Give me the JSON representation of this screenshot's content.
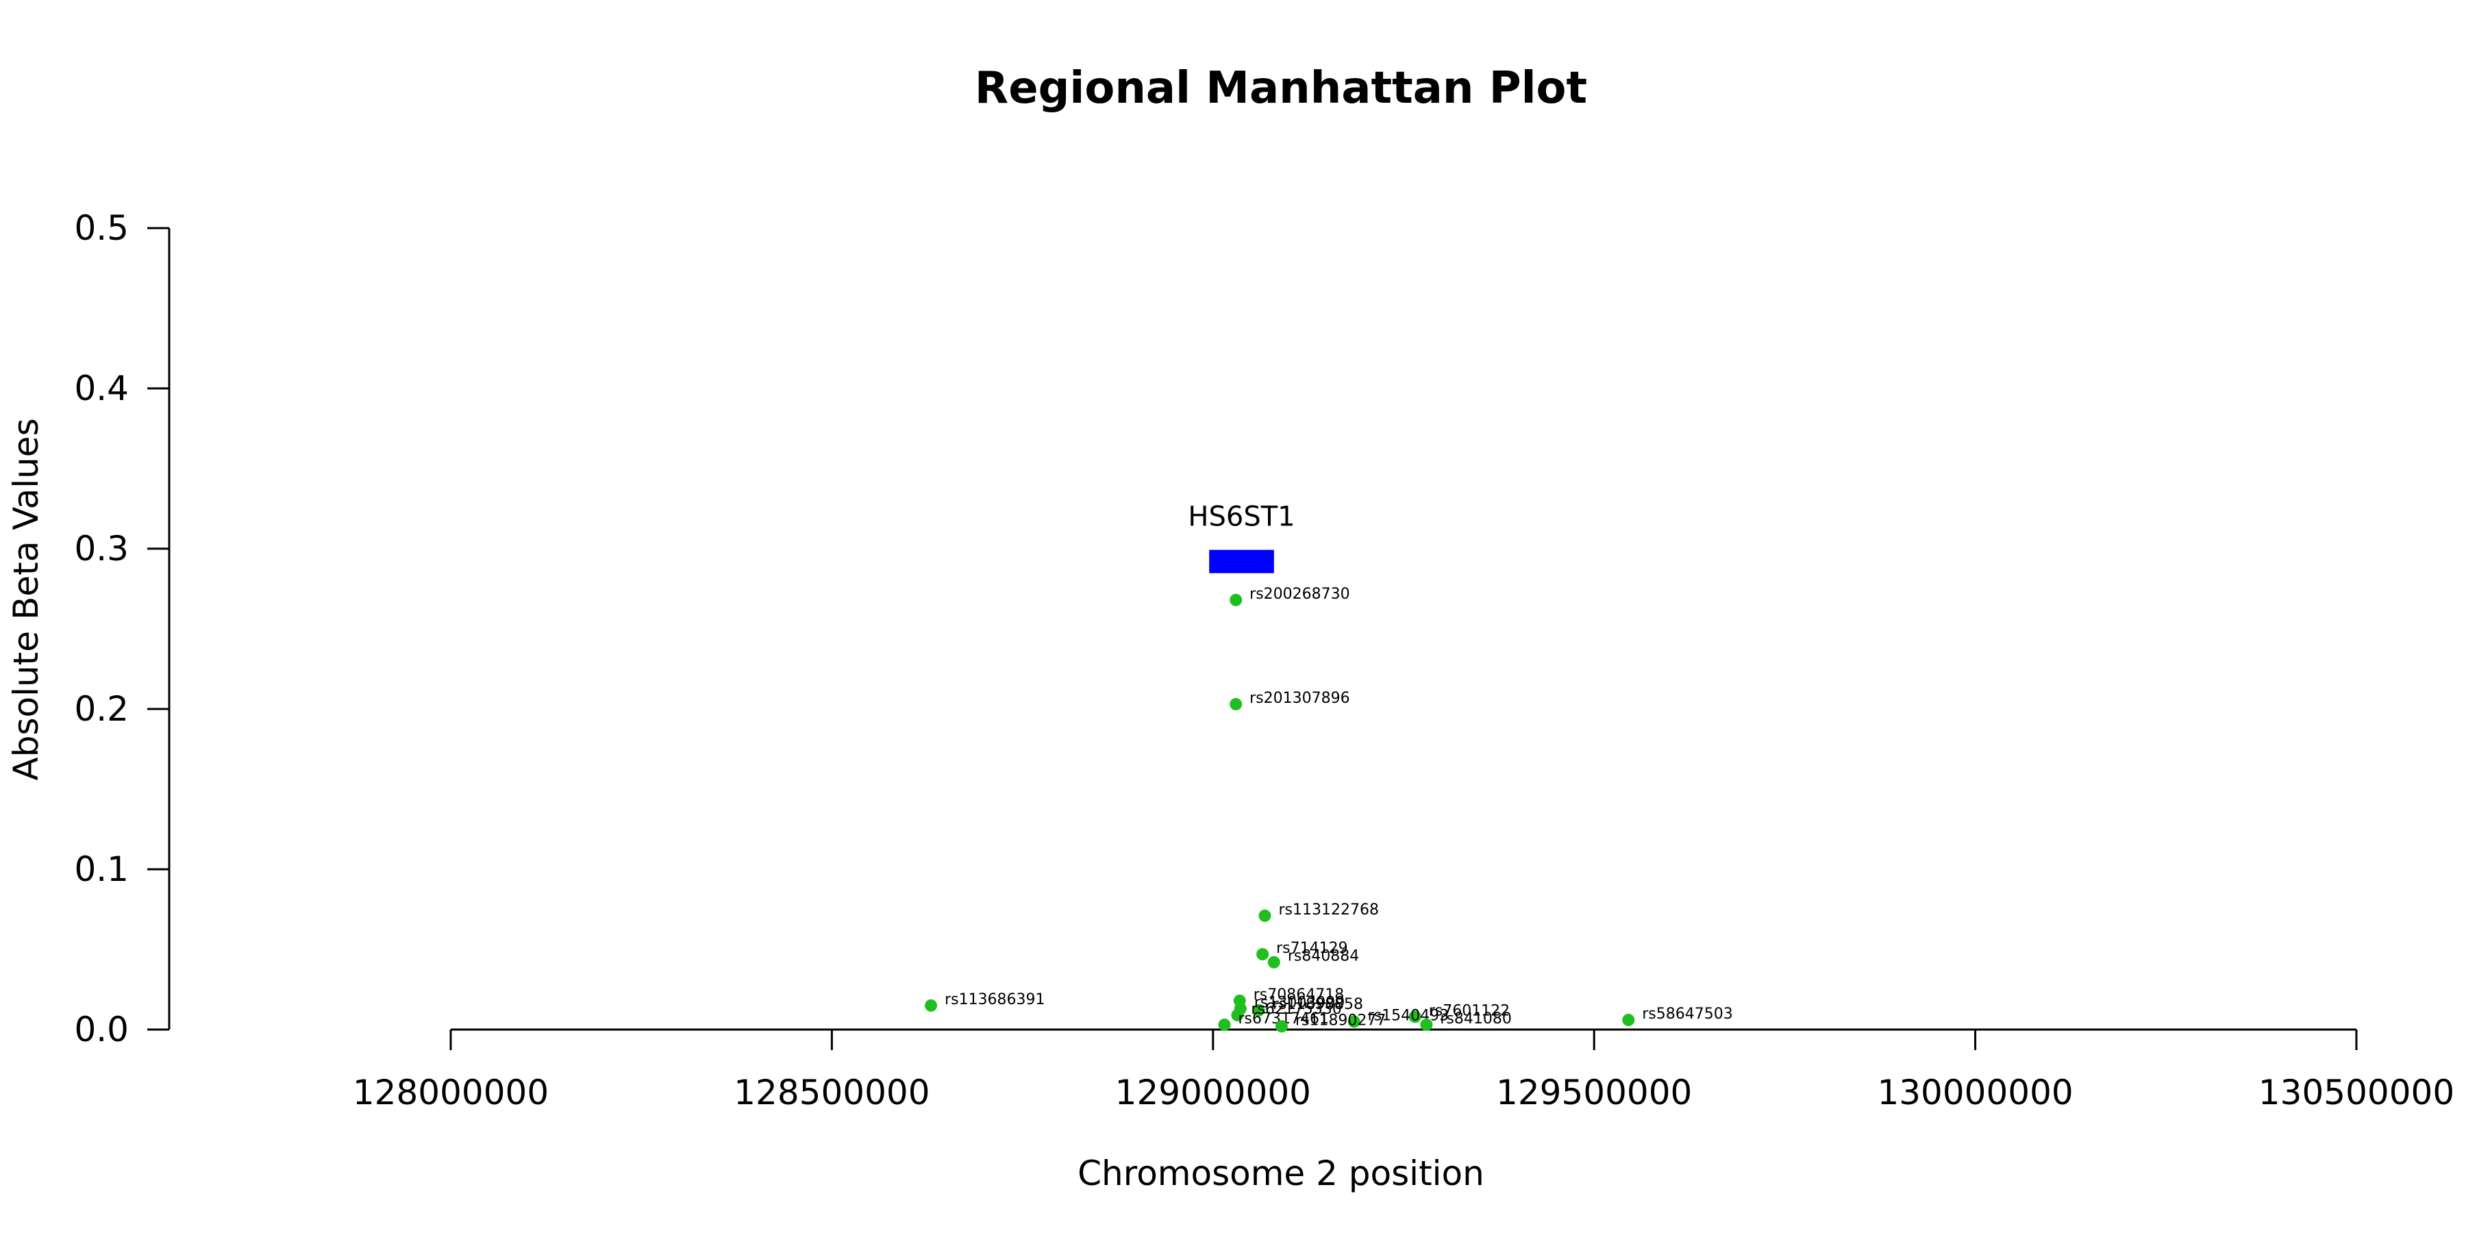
{
  "chart_data": {
    "type": "scatter",
    "title": "Regional Manhattan Plot",
    "xlabel": "Chromosome 2 position",
    "ylabel": "Absolute Beta Values",
    "xlim": [
      128000000,
      130500000
    ],
    "ylim": [
      0,
      0.5
    ],
    "x_ticks": [
      "128000000",
      "128500000",
      "129000000",
      "129500000",
      "130000000",
      "130500000"
    ],
    "y_ticks": [
      "0.0",
      "0.1",
      "0.2",
      "0.3",
      "0.4",
      "0.5"
    ],
    "grid": false,
    "point_color": "#1fbf1f",
    "gene": {
      "name": "HS6ST1",
      "start": 128995000,
      "end": 129080000,
      "y": 0.292,
      "color": "#0000ff"
    },
    "points": [
      {
        "rsid": "rs200268730",
        "x": 129030000,
        "y": 0.268
      },
      {
        "rsid": "rs201307896",
        "x": 129030000,
        "y": 0.203
      },
      {
        "rsid": "rs113122768",
        "x": 129068000,
        "y": 0.071
      },
      {
        "rsid": "rs714129",
        "x": 129065000,
        "y": 0.047
      },
      {
        "rsid": "rs840884",
        "x": 129080000,
        "y": 0.042
      },
      {
        "rsid": "rs113686391",
        "x": 128630000,
        "y": 0.015
      },
      {
        "rsid": "rs70864718",
        "x": 129035000,
        "y": 0.018
      },
      {
        "rsid": "rs11898858",
        "x": 129060000,
        "y": 0.012
      },
      {
        "rsid": "rs13003999",
        "x": 129036000,
        "y": 0.013
      },
      {
        "rsid": "rs62175330",
        "x": 129032000,
        "y": 0.009
      },
      {
        "rsid": "rs7601122",
        "x": 129265000,
        "y": 0.008
      },
      {
        "rsid": "rs1540493",
        "x": 129185000,
        "y": 0.005
      },
      {
        "rsid": "rs67317461",
        "x": 129015000,
        "y": 0.003
      },
      {
        "rsid": "rs11890277",
        "x": 129090000,
        "y": 0.002
      },
      {
        "rsid": "rs841080",
        "x": 129280000,
        "y": 0.003
      },
      {
        "rsid": "rs58647503",
        "x": 129545000,
        "y": 0.006
      }
    ]
  }
}
